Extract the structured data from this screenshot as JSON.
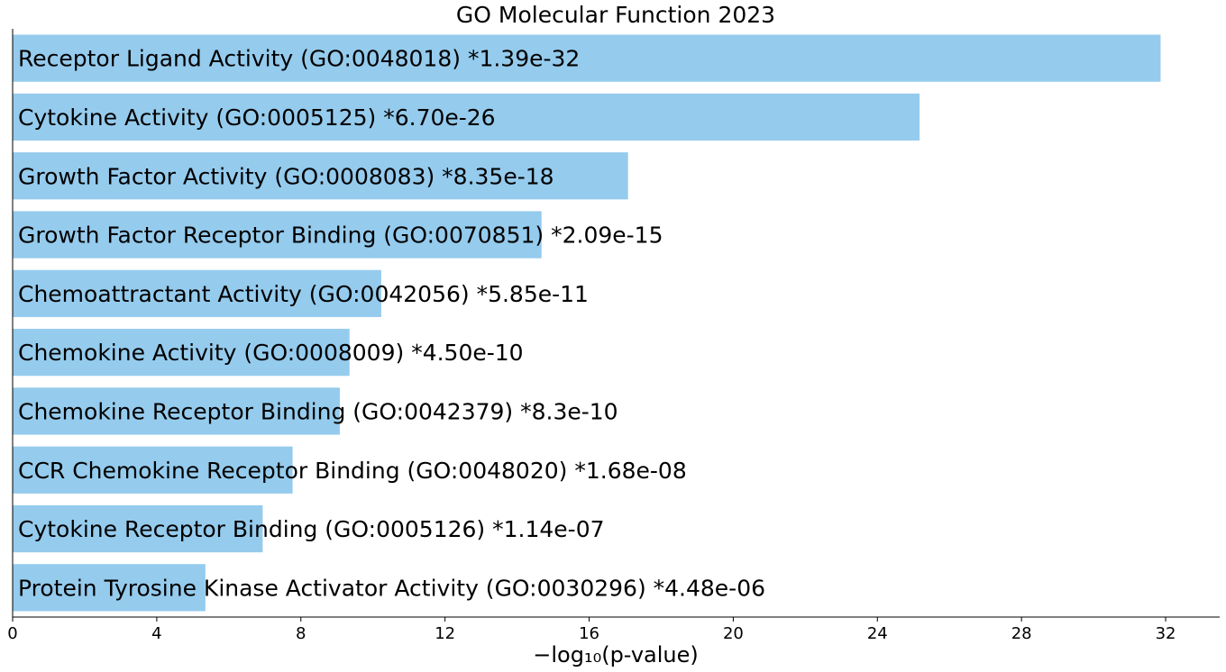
{
  "chart_data": {
    "type": "bar",
    "orientation": "horizontal",
    "title": "GO Molecular Function 2023",
    "xlabel": "−log₁₀(p-value)",
    "ylabel": "",
    "xlim": [
      0,
      33.5
    ],
    "xticks": [
      0,
      4,
      8,
      12,
      16,
      20,
      24,
      28,
      32
    ],
    "bar_color": "#95cbed",
    "grid": false,
    "categories": [
      "Receptor Ligand Activity (GO:0048018)  *1.39e-32",
      "Cytokine Activity (GO:0005125)  *6.70e-26",
      "Growth Factor Activity (GO:0008083)  *8.35e-18",
      "Growth Factor Receptor Binding (GO:0070851)  *2.09e-15",
      "Chemoattractant Activity (GO:0042056)  *5.85e-11",
      "Chemokine Activity (GO:0008009)  *4.50e-10",
      "Chemokine Receptor Binding (GO:0042379)  *8.3e-10",
      "CCR Chemokine Receptor Binding (GO:0048020)  *1.68e-08",
      "Cytokine Receptor Binding (GO:0005126)  *1.14e-07",
      "Protein Tyrosine Kinase Activator Activity (GO:0030296)  *4.48e-06"
    ],
    "values": [
      31.86,
      25.17,
      17.08,
      14.68,
      10.23,
      9.35,
      9.08,
      7.77,
      6.94,
      5.35
    ]
  }
}
